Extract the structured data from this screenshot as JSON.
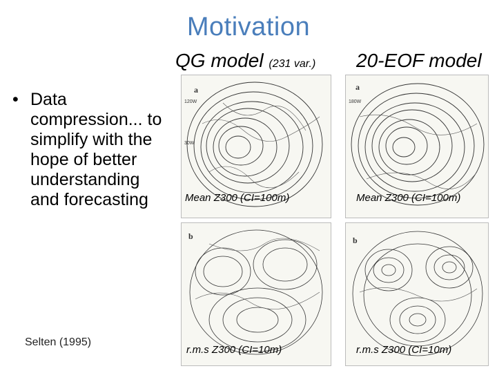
{
  "slide": {
    "title": "Motivation",
    "columns": {
      "qg": {
        "label": "QG model",
        "note": "(231 var.)"
      },
      "eof": {
        "label": "20-EOF model"
      }
    },
    "bullet": {
      "marker": "•",
      "text": "Data compression... to simplify with the hope of better understanding and forecasting"
    },
    "citation": "Selten (1995)",
    "panels": {
      "qg_a": {
        "letter": "a",
        "caption": "Mean Z300 (CI=100m)"
      },
      "eof_a": {
        "letter": "a",
        "caption": "Mean Z300 (CI=100m)"
      },
      "qg_b": {
        "letter": "b",
        "caption": "r.m.s Z300 (CI=10m)"
      },
      "eof_b": {
        "letter": "b",
        "caption": "r.m.s Z300 (CI=10m)"
      }
    }
  }
}
